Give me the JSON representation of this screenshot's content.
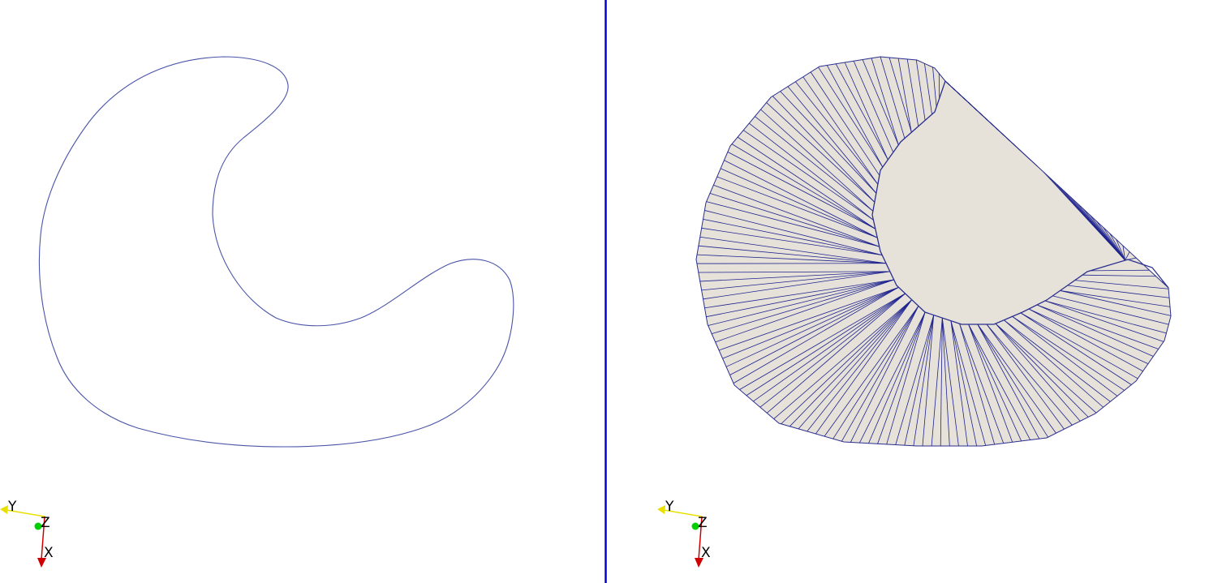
{
  "views": [
    {
      "axes": {
        "y": "Y",
        "z": "Z",
        "x": "X"
      }
    },
    {
      "axes": {
        "y": "Y",
        "z": "Z",
        "x": "X"
      }
    }
  ]
}
